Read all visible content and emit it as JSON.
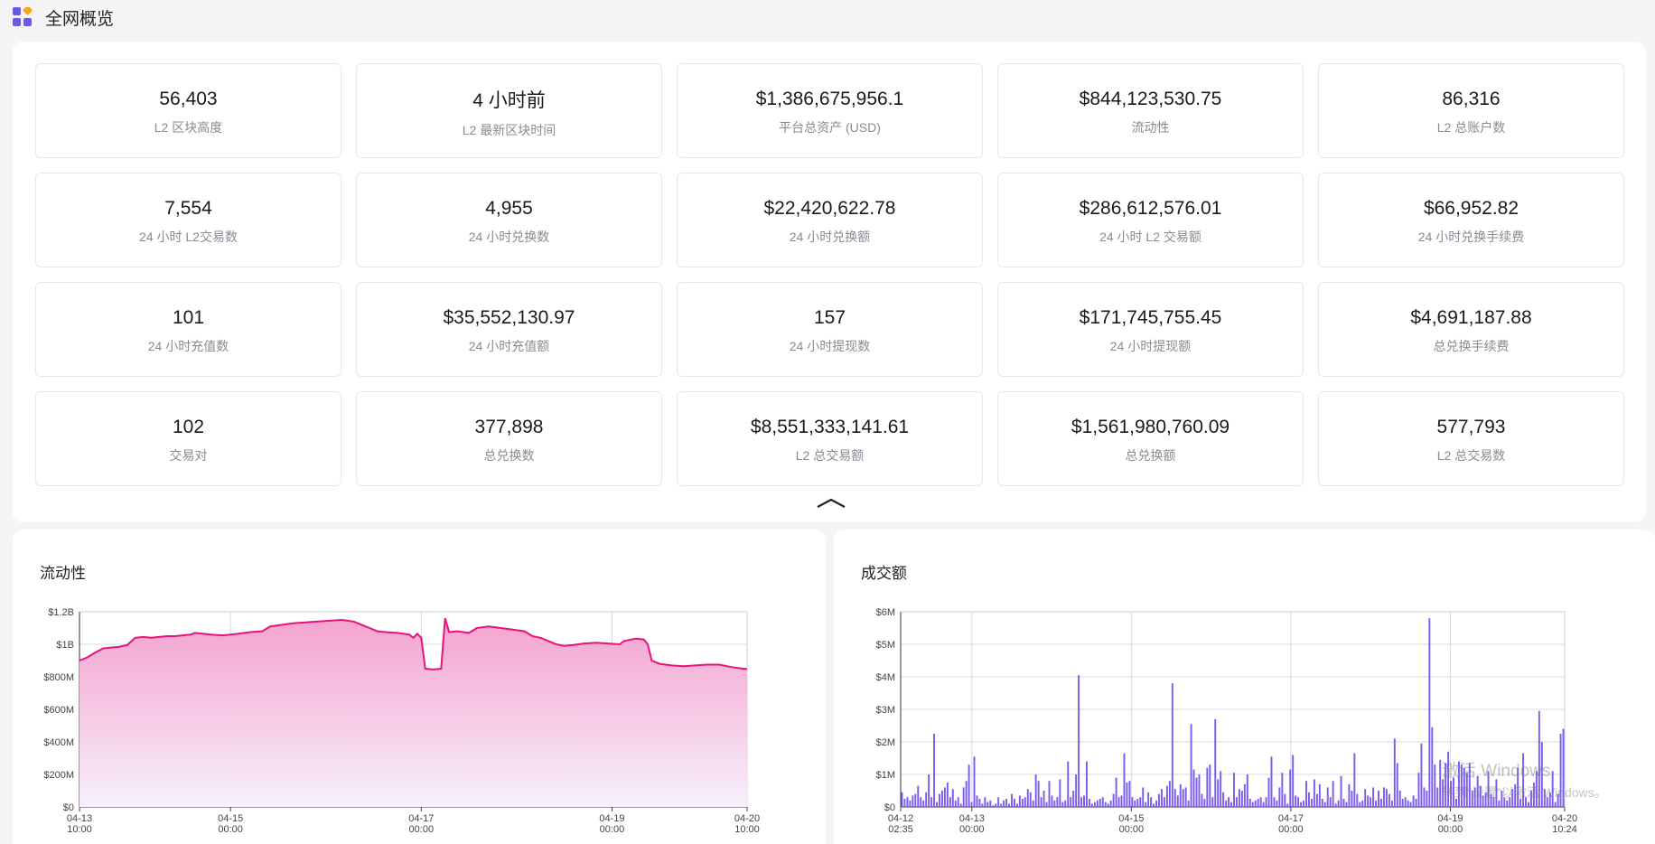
{
  "header": {
    "title": "全网概览",
    "icon": "apps-grid-icon"
  },
  "stats": [
    {
      "value": "56,403",
      "label": "L2 区块高度"
    },
    {
      "value": "4 小时前",
      "label": "L2 最新区块时间"
    },
    {
      "value": "$1,386,675,956.1",
      "label": "平台总资产 (USD)"
    },
    {
      "value": "$844,123,530.75",
      "label": "流动性"
    },
    {
      "value": "86,316",
      "label": "L2 总账户数"
    },
    {
      "value": "7,554",
      "label": "24 小时 L2交易数"
    },
    {
      "value": "4,955",
      "label": "24 小时兑换数"
    },
    {
      "value": "$22,420,622.78",
      "label": "24 小时兑换额"
    },
    {
      "value": "$286,612,576.01",
      "label": "24 小时 L2 交易额"
    },
    {
      "value": "$66,952.82",
      "label": "24 小时兑换手续费"
    },
    {
      "value": "101",
      "label": "24 小时充值数"
    },
    {
      "value": "$35,552,130.97",
      "label": "24 小时充值额"
    },
    {
      "value": "157",
      "label": "24 小时提现数"
    },
    {
      "value": "$171,745,755.45",
      "label": "24 小时提现额"
    },
    {
      "value": "$4,691,187.88",
      "label": "总兑换手续费"
    },
    {
      "value": "102",
      "label": "交易对"
    },
    {
      "value": "377,898",
      "label": "总兑换数"
    },
    {
      "value": "$8,551,333,141.61",
      "label": "L2 总交易额"
    },
    {
      "value": "$1,561,980,760.09",
      "label": "总兑换额"
    },
    {
      "value": "577,793",
      "label": "L2 总交易数"
    }
  ],
  "collapse_icon": "chevron-up-icon",
  "watermark": {
    "title": "激活 Windows",
    "subtitle": "转到\"设置\"以激活 Windows。"
  },
  "chart_data": [
    {
      "type": "area",
      "title": "流动性",
      "color": "#e8137a",
      "fill_top": "#f4a3cf",
      "fill_bottom": "#f6f0fb",
      "ylim": [
        0,
        1200000000
      ],
      "y_ticks": [
        {
          "v": 0,
          "label": "$0"
        },
        {
          "v": 200000000,
          "label": "$200M"
        },
        {
          "v": 400000000,
          "label": "$400M"
        },
        {
          "v": 600000000,
          "label": "$600M"
        },
        {
          "v": 800000000,
          "label": "$800M"
        },
        {
          "v": 1000000000,
          "label": "$1B"
        },
        {
          "v": 1200000000,
          "label": "$1.2B"
        }
      ],
      "xlim": [
        "04-13 10:00",
        "04-20 10:00"
      ],
      "xlim_h": [
        0,
        168
      ],
      "x_ticks": [
        {
          "h": 0,
          "l1": "04-13",
          "l2": "10:00"
        },
        {
          "h": 38,
          "l1": "04-15",
          "l2": "00:00"
        },
        {
          "h": 86,
          "l1": "04-17",
          "l2": "00:00"
        },
        {
          "h": 134,
          "l1": "04-19",
          "l2": "00:00"
        },
        {
          "h": 168,
          "l1": "04-20",
          "l2": "10:00"
        }
      ],
      "points_h": [
        [
          0,
          900
        ],
        [
          2,
          920
        ],
        [
          4,
          950
        ],
        [
          6,
          975
        ],
        [
          8,
          980
        ],
        [
          10,
          985
        ],
        [
          12,
          995
        ],
        [
          14,
          1040
        ],
        [
          16,
          1045
        ],
        [
          18,
          1040
        ],
        [
          20,
          1045
        ],
        [
          22,
          1050
        ],
        [
          24,
          1050
        ],
        [
          26,
          1055
        ],
        [
          28,
          1060
        ],
        [
          29,
          1070
        ],
        [
          31,
          1065
        ],
        [
          33,
          1060
        ],
        [
          36,
          1055
        ],
        [
          38,
          1060
        ],
        [
          40,
          1065
        ],
        [
          43,
          1075
        ],
        [
          46,
          1080
        ],
        [
          48,
          1110
        ],
        [
          51,
          1120
        ],
        [
          54,
          1130
        ],
        [
          57,
          1135
        ],
        [
          60,
          1140
        ],
        [
          63,
          1145
        ],
        [
          66,
          1150
        ],
        [
          69,
          1140
        ],
        [
          71,
          1120
        ],
        [
          73,
          1100
        ],
        [
          75,
          1080
        ],
        [
          77,
          1075
        ],
        [
          80,
          1070
        ],
        [
          83,
          1060
        ],
        [
          84,
          1040
        ],
        [
          85,
          1065
        ],
        [
          86,
          1040
        ],
        [
          87,
          850
        ],
        [
          89,
          845
        ],
        [
          91,
          850
        ],
        [
          92,
          1160
        ],
        [
          93,
          1075
        ],
        [
          95,
          1080
        ],
        [
          98,
          1070
        ],
        [
          100,
          1100
        ],
        [
          103,
          1110
        ],
        [
          106,
          1100
        ],
        [
          109,
          1090
        ],
        [
          112,
          1080
        ],
        [
          114,
          1050
        ],
        [
          116,
          1040
        ],
        [
          118,
          1020
        ],
        [
          120,
          1000
        ],
        [
          122,
          990
        ],
        [
          124,
          995
        ],
        [
          127,
          1005
        ],
        [
          130,
          1010
        ],
        [
          133,
          1005
        ],
        [
          136,
          1000
        ],
        [
          137,
          1020
        ],
        [
          140,
          1035
        ],
        [
          142,
          1030
        ],
        [
          143,
          1000
        ],
        [
          144,
          900
        ],
        [
          146,
          880
        ],
        [
          149,
          870
        ],
        [
          152,
          865
        ],
        [
          155,
          870
        ],
        [
          158,
          875
        ],
        [
          161,
          875
        ],
        [
          164,
          860
        ],
        [
          167,
          850
        ],
        [
          168,
          848
        ]
      ],
      "points_unit": 1000000
    },
    {
      "type": "bar",
      "title": "成交额",
      "color": "#7b5cf0",
      "ylim": [
        0,
        6000000
      ],
      "y_ticks": [
        {
          "v": 0,
          "label": "$0"
        },
        {
          "v": 1000000,
          "label": "$1M"
        },
        {
          "v": 2000000,
          "label": "$2M"
        },
        {
          "v": 3000000,
          "label": "$3M"
        },
        {
          "v": 4000000,
          "label": "$4M"
        },
        {
          "v": 5000000,
          "label": "$5M"
        },
        {
          "v": 6000000,
          "label": "$6M"
        }
      ],
      "xlim": [
        "04-12 02:35",
        "04-20 10:24"
      ],
      "xlim_h": [
        0,
        199.82
      ],
      "x_ticks": [
        {
          "h": 0,
          "l1": "04-12",
          "l2": "02:35"
        },
        {
          "h": 21.42,
          "l1": "04-13",
          "l2": "00:00"
        },
        {
          "h": 69.42,
          "l1": "04-15",
          "l2": "00:00"
        },
        {
          "h": 117.42,
          "l1": "04-17",
          "l2": "00:00"
        },
        {
          "h": 165.42,
          "l1": "04-19",
          "l2": "00:00"
        },
        {
          "h": 199.82,
          "l1": "04-20",
          "l2": "10:24"
        }
      ],
      "values": [
        0.45,
        0.25,
        0.3,
        0.2,
        0.35,
        0.4,
        0.65,
        0.3,
        0.2,
        0.45,
        1.0,
        0.3,
        2.25,
        0.15,
        0.4,
        0.5,
        0.6,
        0.75,
        0.3,
        0.55,
        0.2,
        0.3,
        0.1,
        0.6,
        0.8,
        1.3,
        0.15,
        1.55,
        0.35,
        0.25,
        0.1,
        0.3,
        0.15,
        0.2,
        0.05,
        0.1,
        0.3,
        0.1,
        0.2,
        0.25,
        0.1,
        0.4,
        0.25,
        0.1,
        0.35,
        0.25,
        0.3,
        0.55,
        0.45,
        0.2,
        1.0,
        0.8,
        0.3,
        0.5,
        0.15,
        0.8,
        0.35,
        0.2,
        0.3,
        0.85,
        0.15,
        0.2,
        1.4,
        0.3,
        0.5,
        1.0,
        4.05,
        0.3,
        0.35,
        1.4,
        0.25,
        0.1,
        0.15,
        0.2,
        0.25,
        0.3,
        0.15,
        0.1,
        0.2,
        0.4,
        0.9,
        0.3,
        0.35,
        1.65,
        0.75,
        0.8,
        0.3,
        0.2,
        0.25,
        0.3,
        0.6,
        0.15,
        0.45,
        0.3,
        0.1,
        0.2,
        0.4,
        0.55,
        0.3,
        0.65,
        0.8,
        3.8,
        0.55,
        0.35,
        0.7,
        0.55,
        0.6,
        0.2,
        2.55,
        1.15,
        0.9,
        1.0,
        0.4,
        0.25,
        1.2,
        1.3,
        0.3,
        2.7,
        0.85,
        1.1,
        0.45,
        0.2,
        0.3,
        0.15,
        1.05,
        0.3,
        0.55,
        0.5,
        0.7,
        1.0,
        0.25,
        0.15,
        0.2,
        0.25,
        0.3,
        0.15,
        0.3,
        0.9,
        1.55,
        0.3,
        0.2,
        0.6,
        1.05,
        0.4,
        0.1,
        1.15,
        1.6,
        0.35,
        0.3,
        0.15,
        0.2,
        0.8,
        0.45,
        0.25,
        0.85,
        0.4,
        0.7,
        0.25,
        0.15,
        0.6,
        0.3,
        0.8,
        0.1,
        0.2,
        0.95,
        0.25,
        0.15,
        0.7,
        0.5,
        1.65,
        0.4,
        0.15,
        0.2,
        0.55,
        0.35,
        0.3,
        0.6,
        0.2,
        0.5,
        0.25,
        0.6,
        0.55,
        0.4,
        0.2,
        2.1,
        1.35,
        0.5,
        0.25,
        0.3,
        0.2,
        0.15,
        0.35,
        0.25,
        1.05,
        1.95,
        0.6,
        0.5,
        5.8,
        2.45,
        1.3,
        0.6,
        1.45,
        0.85,
        1.35,
        1.7,
        0.8,
        0.9,
        0.25,
        1.4,
        1.3,
        1.2,
        1.05,
        1.35,
        0.5,
        0.6,
        0.95,
        0.65,
        0.35,
        0.45,
        1.1,
        0.4,
        0.3,
        0.85,
        0.2,
        0.5,
        0.3,
        0.2,
        0.3,
        0.55,
        0.7,
        1.2,
        0.25,
        1.65,
        0.3,
        0.15,
        0.5,
        0.75,
        1.1,
        2.95,
        2.0,
        0.55,
        0.3,
        0.45,
        1.1,
        0.15,
        0.4,
        2.25,
        2.4
      ],
      "values_unit": 1000000
    }
  ]
}
